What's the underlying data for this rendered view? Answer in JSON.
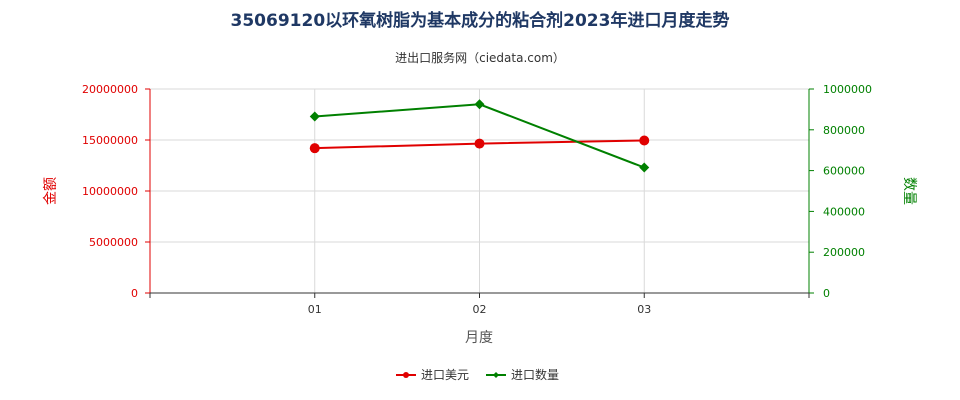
{
  "title": "35069120以环氧树脂为基本成分的粘合剂2023年进口月度走势",
  "subtitle": "进出口服务网（ciedata.com）",
  "chart_data": {
    "type": "line",
    "categories": [
      "01",
      "02",
      "03"
    ],
    "xlabel": "月度",
    "y_left": {
      "label": "金额",
      "range": [
        0,
        20000000
      ],
      "ticks": [
        "0",
        "5000000",
        "10000000",
        "15000000",
        "20000000"
      ],
      "tick_values": [
        0,
        5000000,
        10000000,
        15000000,
        20000000
      ],
      "color": "#e00000"
    },
    "y_right": {
      "label": "数量",
      "range": [
        0,
        1000000
      ],
      "ticks": [
        "0",
        "200000",
        "400000",
        "600000",
        "800000",
        "1000000"
      ],
      "tick_values": [
        0,
        200000,
        400000,
        600000,
        800000,
        1000000
      ],
      "color": "#008000"
    },
    "series": [
      {
        "name": "进口美元",
        "axis": "left",
        "color": "#e00000",
        "marker": "circle",
        "values": [
          14200000,
          14650000,
          14950000
        ]
      },
      {
        "name": "进口数量",
        "axis": "right",
        "color": "#008000",
        "marker": "diamond",
        "values": [
          865000,
          925000,
          615000
        ]
      }
    ],
    "grid": true,
    "legend": "bottom-center"
  }
}
